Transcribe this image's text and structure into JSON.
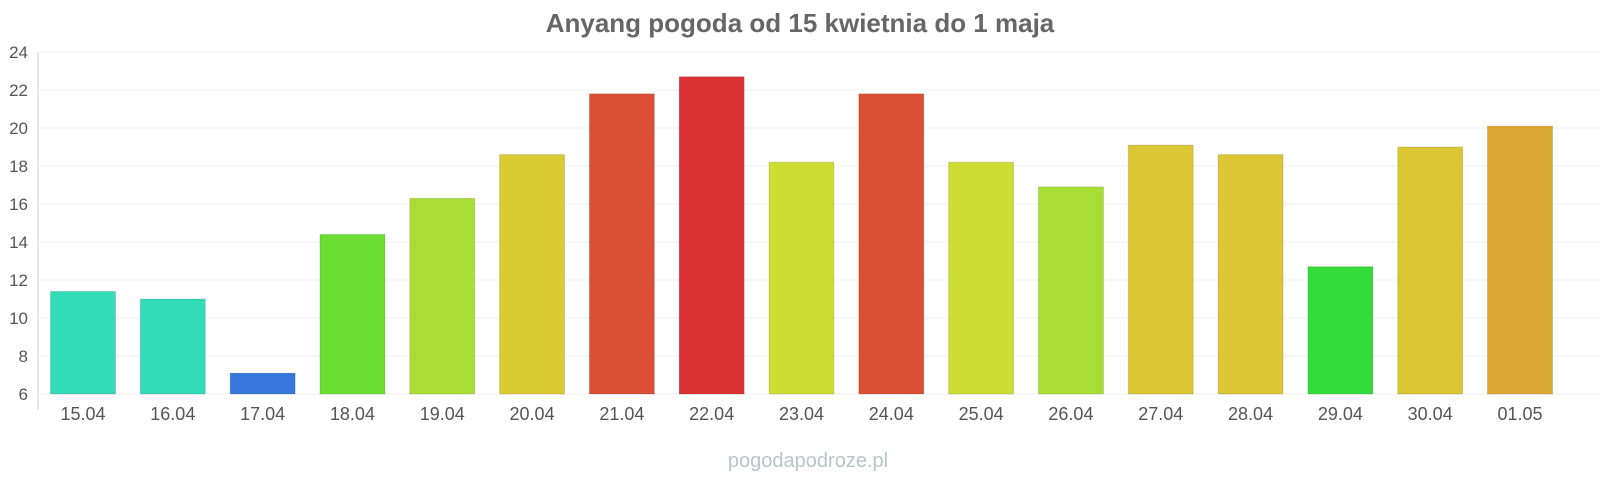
{
  "chart_data": {
    "type": "bar",
    "title": "Anyang pogoda od 15 kwietnia do 1 maja",
    "xlabel": "",
    "ylabel": "",
    "ylim": [
      6,
      24
    ],
    "yticks": [
      6,
      8,
      10,
      12,
      14,
      16,
      18,
      20,
      22,
      24
    ],
    "grid": true,
    "legend": "none",
    "categories": [
      "15.04",
      "16.04",
      "17.04",
      "18.04",
      "19.04",
      "20.04",
      "21.04",
      "22.04",
      "23.04",
      "24.04",
      "25.04",
      "26.04",
      "27.04",
      "28.04",
      "29.04",
      "30.04",
      "01.05"
    ],
    "values": [
      11.4,
      11.0,
      7.1,
      14.4,
      16.3,
      18.6,
      21.8,
      22.7,
      18.2,
      21.8,
      18.2,
      16.9,
      19.1,
      18.6,
      12.7,
      19.0,
      20.1
    ],
    "colors": [
      "#33dcb9",
      "#33dcb9",
      "#3677dd",
      "#6cde33",
      "#a8dd33",
      "#dbcb33",
      "#db5034",
      "#db3333",
      "#cddd33",
      "#db5034",
      "#cddd33",
      "#a8dd33",
      "#dbc633",
      "#dbc633",
      "#33dc3a",
      "#dbc633",
      "#dba933"
    ]
  },
  "watermark": "pogodapodroze.pl"
}
